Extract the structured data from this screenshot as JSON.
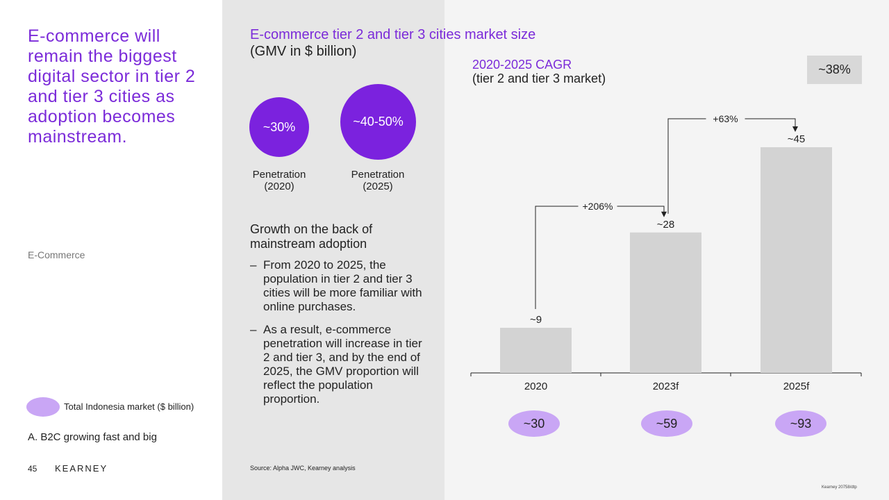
{
  "slide": {
    "headline": "E-commerce will remain the biggest digital sector in tier 2 and tier 3 cities as adoption becomes mainstream.",
    "section_tag": "E-Commerce",
    "legend_label": "Total Indonesia market ($ billion)",
    "section_label": "A. B2C growing fast and big",
    "page_number": "45",
    "brand": "KEARNEY",
    "footer_code": "Kearney 20758/dtp"
  },
  "middle": {
    "chart_title": "E-commerce tier 2 and tier 3 cities market size",
    "chart_subtitle": "(GMV in $ billion)",
    "penetration": [
      {
        "value": "~30%",
        "label_line1": "Penetration",
        "label_line2": "(2020)"
      },
      {
        "value": "~40-50%",
        "label_line1": "Penetration",
        "label_line2": "(2025)"
      }
    ],
    "growth_title": "Growth on the back of mainstream adoption",
    "bullets": [
      "From 2020 to 2025, the population in tier 2 and tier 3 cities will be more familiar with online purchases.",
      "As a result, e-commerce penetration will increase in tier 2 and tier 3, and by the end of 2025, the GMV proportion will reflect the population proportion."
    ],
    "bullet_dash": "–",
    "source": "Source: Alpha JWC, Kearney analysis"
  },
  "cagr": {
    "title": "2020-2025 CAGR",
    "subtitle": "(tier 2 and tier 3 market)",
    "value": "~38%"
  },
  "colors": {
    "accent_purple": "#7b2bd9",
    "circle_purple": "#7b22de",
    "ellipse_lavender": "#c9a6f5",
    "bar_gray": "#d3d3d3"
  },
  "chart_data": {
    "type": "bar",
    "categories": [
      "2020",
      "2023f",
      "2025f"
    ],
    "values": [
      9,
      28,
      45
    ],
    "value_labels": [
      "~9",
      "~28",
      "~45"
    ],
    "total_market": [
      "~30",
      "~59",
      "~93"
    ],
    "growth_arrows": [
      {
        "from": 0,
        "to": 1,
        "label": "+206%"
      },
      {
        "from": 1,
        "to": 2,
        "label": "+63%"
      }
    ],
    "ylim": [
      0,
      45
    ],
    "grid": false
  }
}
